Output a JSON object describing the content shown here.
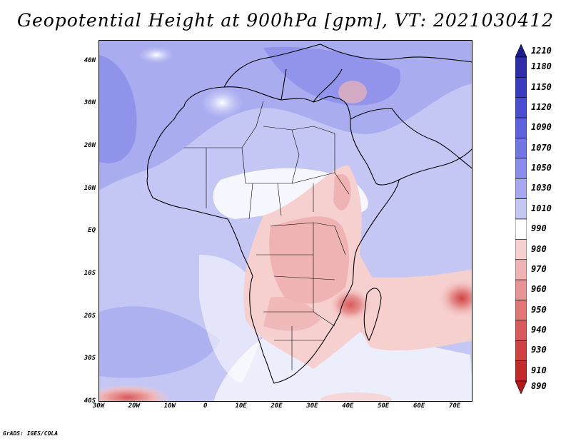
{
  "title": "Geopotential Height at 900hPa [gpm], VT: 2021030412",
  "footer": "GrADS: IGES/COLA",
  "map": {
    "lon_range": [
      -30,
      75
    ],
    "lat_range": [
      -40,
      45
    ],
    "lat_ticks": [
      {
        "value": 40,
        "label": "40N"
      },
      {
        "value": 30,
        "label": "30N"
      },
      {
        "value": 20,
        "label": "20N"
      },
      {
        "value": 10,
        "label": "10N"
      },
      {
        "value": 0,
        "label": "EQ"
      },
      {
        "value": -10,
        "label": "10S"
      },
      {
        "value": -20,
        "label": "20S"
      },
      {
        "value": -30,
        "label": "30S"
      },
      {
        "value": -40,
        "label": "40S"
      }
    ],
    "lon_ticks": [
      {
        "value": -30,
        "label": "30W"
      },
      {
        "value": -20,
        "label": "20W"
      },
      {
        "value": -10,
        "label": "10W"
      },
      {
        "value": 0,
        "label": "0"
      },
      {
        "value": 10,
        "label": "10E"
      },
      {
        "value": 20,
        "label": "20E"
      },
      {
        "value": 30,
        "label": "30E"
      },
      {
        "value": 40,
        "label": "40E"
      },
      {
        "value": 50,
        "label": "50E"
      },
      {
        "value": 60,
        "label": "60E"
      },
      {
        "value": 70,
        "label": "70E"
      }
    ]
  },
  "colorbar": {
    "levels": [
      "1210",
      "1180",
      "1150",
      "1120",
      "1090",
      "1070",
      "1050",
      "1030",
      "1010",
      "990",
      "980",
      "970",
      "960",
      "950",
      "940",
      "930",
      "910",
      "890"
    ],
    "colors": [
      "#1c1c8c",
      "#2d2ea8",
      "#3a3cc0",
      "#4a4ed2",
      "#5d62dc",
      "#7276e2",
      "#898ce8",
      "#a5a8ee",
      "#c4c6f4",
      "#ffffff",
      "#f6cfcf",
      "#efb3b3",
      "#e89494",
      "#e07676",
      "#d85a5a",
      "#cf4242",
      "#c32b2b",
      "#b51818"
    ]
  },
  "features": [
    {
      "name": "low-center-mozambique-channel",
      "lon": 41,
      "lat": -17,
      "level": "950"
    },
    {
      "name": "low-center-indian-ocean",
      "lon": 72,
      "lat": -16,
      "level": "950"
    },
    {
      "name": "low-center-south-atlantic",
      "lon": -20,
      "lat": -40,
      "level": "960"
    }
  ]
}
